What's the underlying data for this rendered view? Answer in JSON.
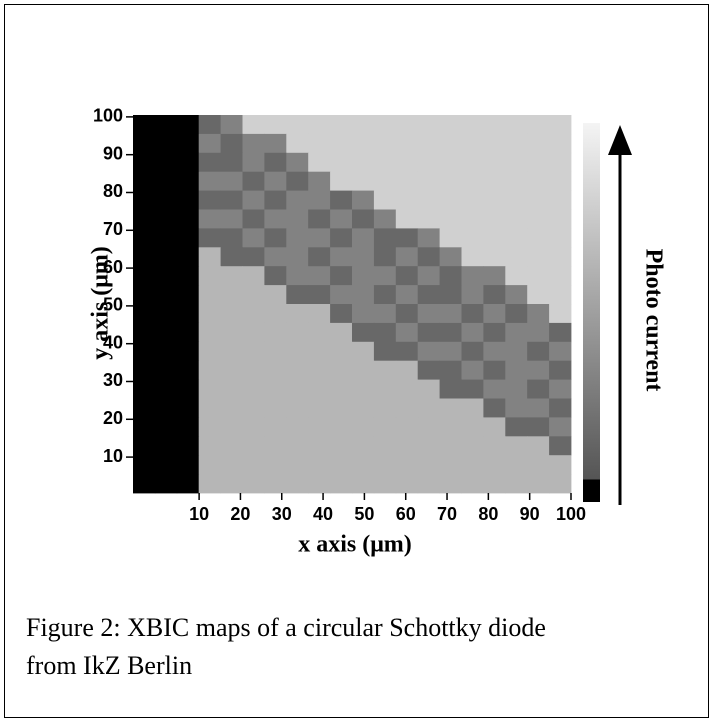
{
  "chart_data": {
    "type": "heatmap",
    "xlabel": "x axis (μm)",
    "ylabel": "y axis (μm)",
    "colorbar_label": "Photo current",
    "xlim": [
      -6,
      100
    ],
    "ylim": [
      0.5,
      100.5
    ],
    "xticks": [
      10,
      20,
      30,
      40,
      50,
      60,
      70,
      80,
      90,
      100
    ],
    "yticks": [
      10,
      20,
      30,
      40,
      50,
      60,
      70,
      80,
      90,
      100
    ],
    "z": [
      [
        0,
        0,
        0,
        4,
        5,
        8,
        8,
        8,
        8,
        8,
        8,
        8,
        8,
        8,
        8,
        8,
        8,
        8,
        8,
        8
      ],
      [
        0,
        0,
        0,
        5,
        4,
        5,
        5,
        8,
        8,
        8,
        8,
        8,
        8,
        8,
        8,
        8,
        8,
        8,
        8,
        8
      ],
      [
        0,
        0,
        0,
        4,
        4,
        5,
        4,
        5,
        8,
        8,
        8,
        8,
        8,
        8,
        8,
        8,
        8,
        8,
        8,
        8
      ],
      [
        0,
        0,
        0,
        5,
        5,
        4,
        5,
        4,
        5,
        8,
        8,
        8,
        8,
        8,
        8,
        8,
        8,
        8,
        8,
        8
      ],
      [
        0,
        0,
        0,
        4,
        4,
        5,
        4,
        5,
        5,
        4,
        5,
        8,
        8,
        8,
        8,
        8,
        8,
        8,
        8,
        8
      ],
      [
        0,
        0,
        0,
        5,
        5,
        4,
        5,
        5,
        4,
        5,
        4,
        5,
        8,
        8,
        8,
        8,
        8,
        8,
        8,
        8
      ],
      [
        0,
        0,
        0,
        4,
        4,
        5,
        4,
        5,
        5,
        4,
        5,
        4,
        4,
        5,
        8,
        8,
        8,
        8,
        8,
        8
      ],
      [
        0,
        0,
        0,
        7,
        4,
        4,
        5,
        5,
        4,
        5,
        5,
        4,
        5,
        4,
        5,
        8,
        8,
        8,
        8,
        8
      ],
      [
        0,
        0,
        0,
        7,
        7,
        7,
        4,
        5,
        5,
        4,
        5,
        5,
        4,
        5,
        4,
        5,
        5,
        8,
        8,
        8
      ],
      [
        0,
        0,
        0,
        7,
        7,
        7,
        7,
        4,
        4,
        5,
        5,
        4,
        5,
        4,
        4,
        5,
        4,
        5,
        8,
        8
      ],
      [
        0,
        0,
        0,
        7,
        7,
        7,
        7,
        7,
        7,
        4,
        5,
        5,
        4,
        5,
        5,
        4,
        5,
        4,
        5,
        8
      ],
      [
        0,
        0,
        0,
        7,
        7,
        7,
        7,
        7,
        7,
        7,
        4,
        4,
        5,
        4,
        4,
        5,
        4,
        5,
        5,
        4
      ],
      [
        0,
        0,
        0,
        7,
        7,
        7,
        7,
        7,
        7,
        7,
        7,
        4,
        4,
        5,
        5,
        4,
        5,
        5,
        4,
        5
      ],
      [
        0,
        0,
        0,
        7,
        7,
        7,
        7,
        7,
        7,
        7,
        7,
        7,
        7,
        4,
        4,
        5,
        4,
        5,
        5,
        4
      ],
      [
        0,
        0,
        0,
        7,
        7,
        7,
        7,
        7,
        7,
        7,
        7,
        7,
        7,
        7,
        4,
        4,
        5,
        5,
        4,
        5
      ],
      [
        0,
        0,
        0,
        7,
        7,
        7,
        7,
        7,
        7,
        7,
        7,
        7,
        7,
        7,
        7,
        7,
        4,
        5,
        5,
        4
      ],
      [
        0,
        0,
        0,
        7,
        7,
        7,
        7,
        7,
        7,
        7,
        7,
        7,
        7,
        7,
        7,
        7,
        7,
        4,
        4,
        5
      ],
      [
        0,
        0,
        0,
        7,
        7,
        7,
        7,
        7,
        7,
        7,
        7,
        7,
        7,
        7,
        7,
        7,
        7,
        7,
        7,
        4
      ],
      [
        0,
        0,
        0,
        7,
        7,
        7,
        7,
        7,
        7,
        7,
        7,
        7,
        7,
        7,
        7,
        7,
        7,
        7,
        7,
        7
      ],
      [
        0,
        0,
        0,
        7,
        7,
        7,
        7,
        7,
        7,
        7,
        7,
        7,
        7,
        7,
        7,
        7,
        7,
        7,
        7,
        7
      ]
    ]
  },
  "caption": [
    "Figure 2: XBIC maps of a circular Schottky diode",
    "from IkZ Berlin"
  ]
}
